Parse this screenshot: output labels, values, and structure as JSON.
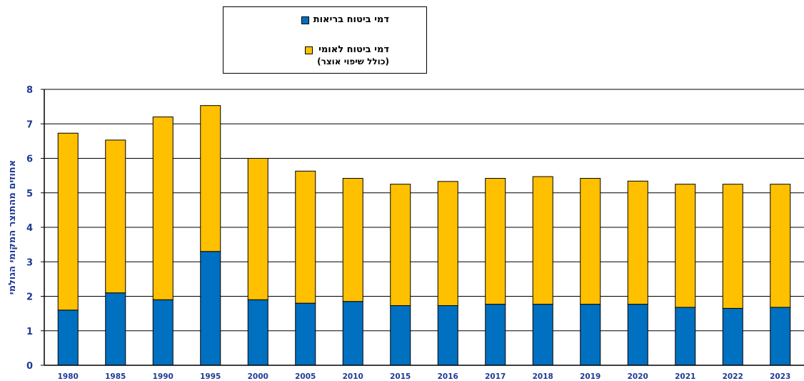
{
  "chart_data": {
    "type": "bar",
    "stacked": true,
    "categories": [
      "1980",
      "1985",
      "1990",
      "1995",
      "2000",
      "2005",
      "2010",
      "2015",
      "2016",
      "2017",
      "2018",
      "2019",
      "2020",
      "2021",
      "2022",
      "2023"
    ],
    "series": [
      {
        "name": "דמי ביטוח בריאות",
        "color": "#0070c0",
        "values": [
          1.6,
          2.1,
          1.9,
          3.3,
          1.9,
          1.8,
          1.85,
          1.73,
          1.73,
          1.77,
          1.77,
          1.77,
          1.77,
          1.68,
          1.65,
          1.68
        ]
      },
      {
        "name": "דמי ביטוח לאומי",
        "name_sub": "(כולל שיפוי אוצר)",
        "color": "#ffc000",
        "values": [
          5.13,
          4.43,
          5.3,
          4.23,
          4.1,
          3.83,
          3.57,
          3.52,
          3.6,
          3.65,
          3.7,
          3.65,
          3.57,
          3.57,
          3.6,
          3.57
        ]
      }
    ],
    "ylabel": "אחוזים מהתוצר המקומי הגולמי",
    "yticks": [
      0,
      1,
      2,
      3,
      4,
      5,
      6,
      7,
      8
    ],
    "ylim": [
      0,
      8
    ],
    "grid": true,
    "legend_position": "top-center"
  }
}
